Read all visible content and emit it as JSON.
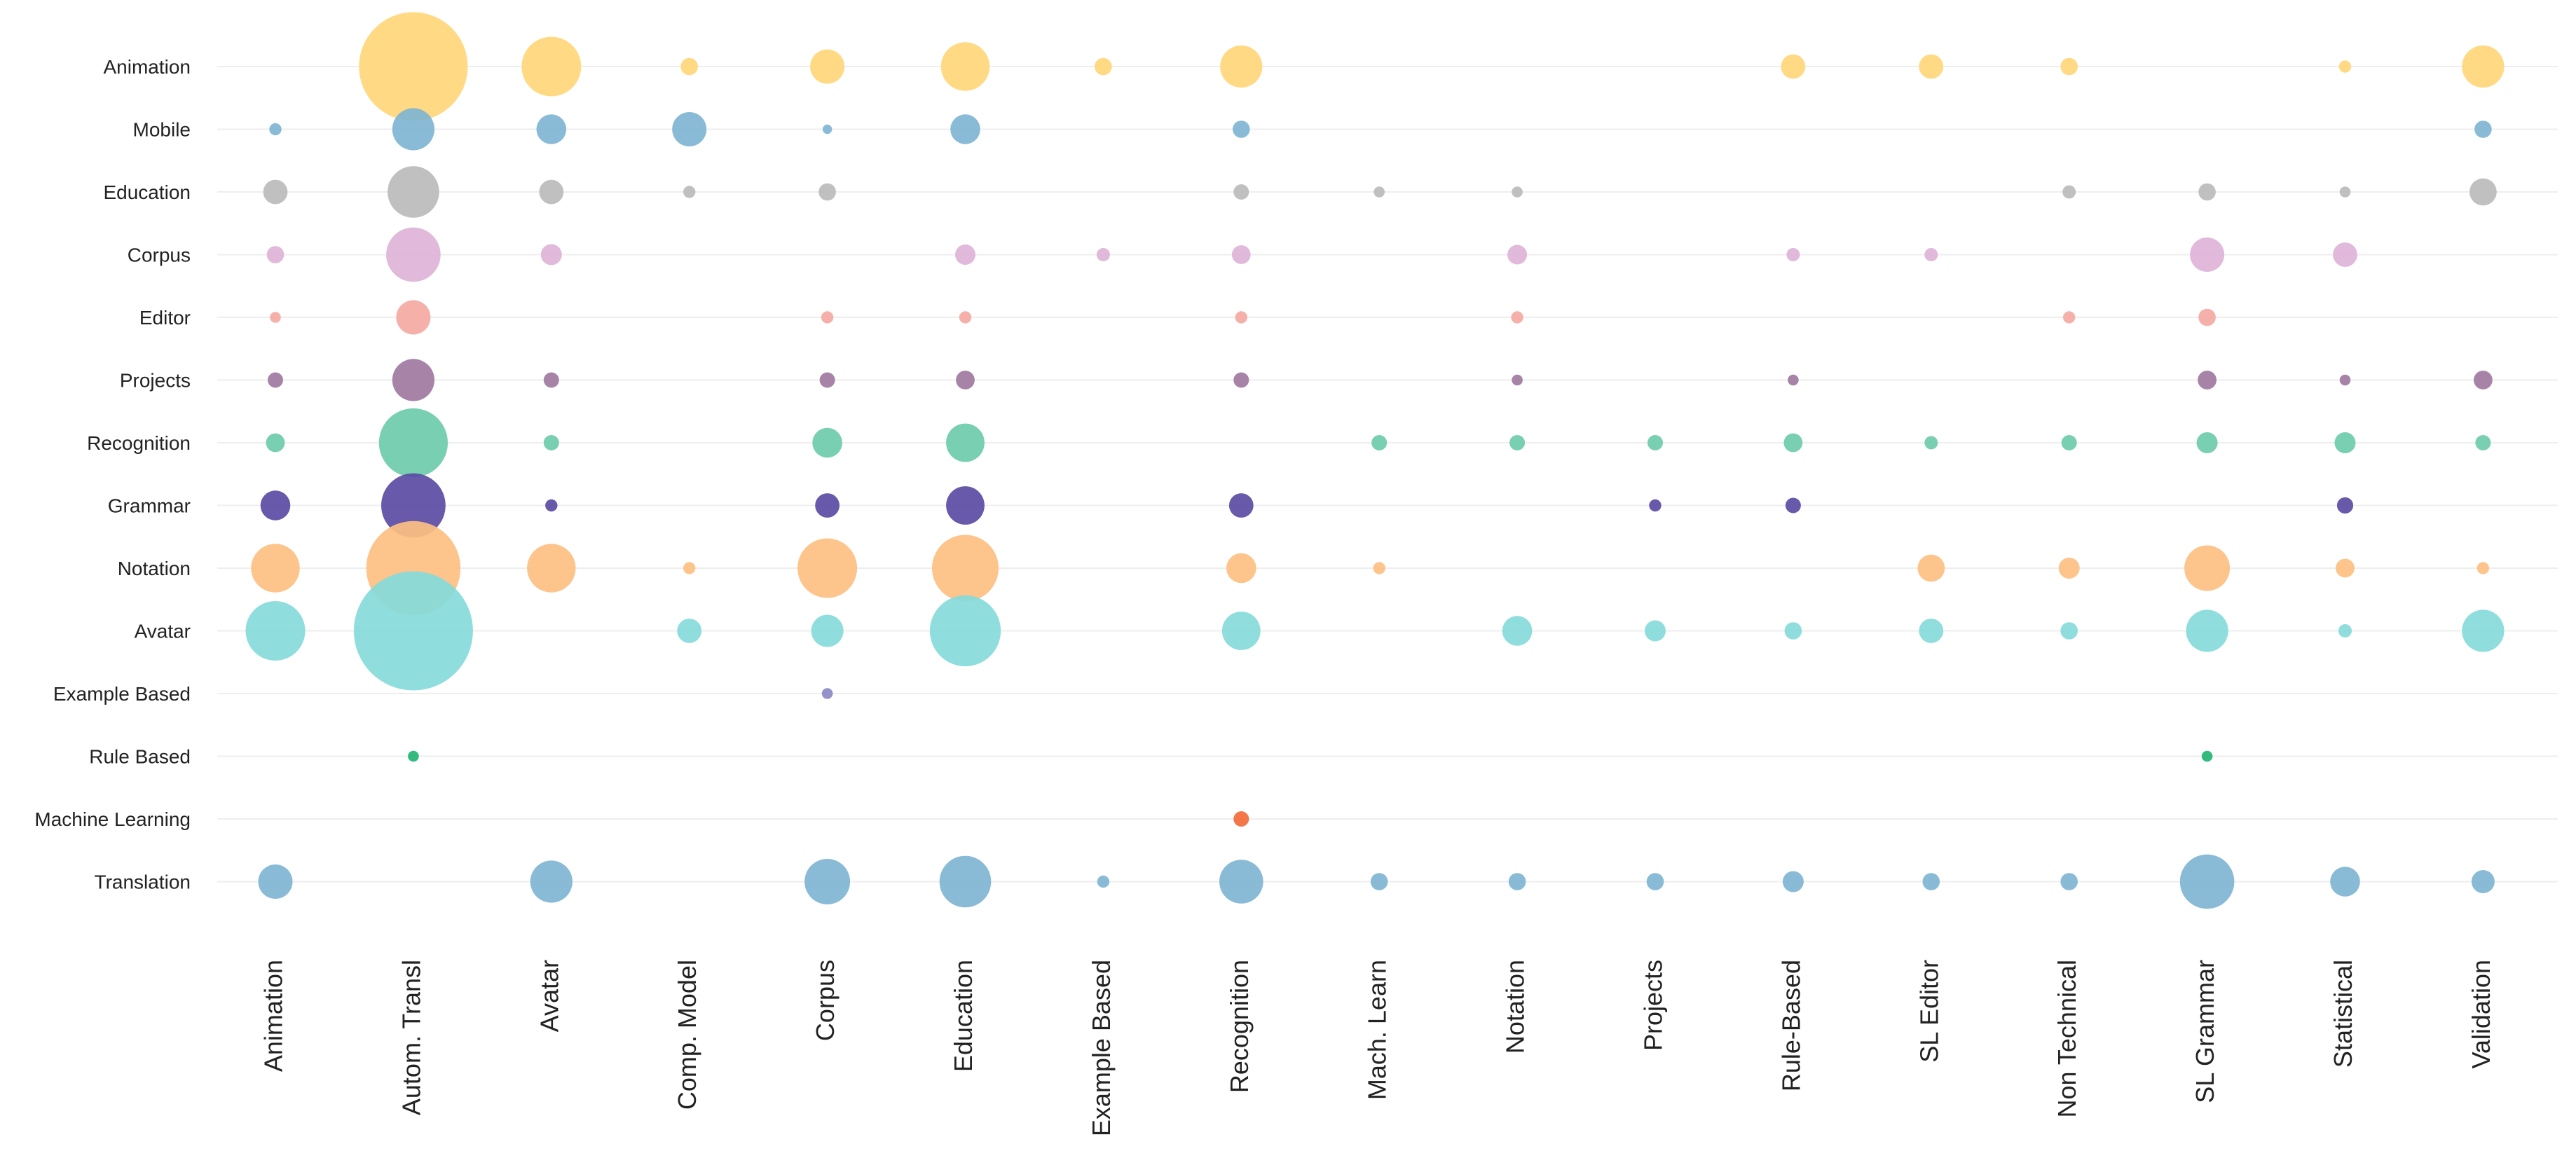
{
  "chart_data": {
    "type": "scatter",
    "subtype": "bubble-matrix",
    "title": "",
    "xlabel": "",
    "ylabel": "",
    "grid": true,
    "rows": [
      {
        "key": "animation",
        "label": "Animation",
        "color": "#FFD67A"
      },
      {
        "key": "mobile",
        "label": "Mobile",
        "color": "#7FB5D2"
      },
      {
        "key": "education",
        "label": "Education",
        "color": "#BBBBBB"
      },
      {
        "key": "corpus",
        "label": "Corpus",
        "color": "#DDB3D8"
      },
      {
        "key": "editor",
        "label": "Editor",
        "color": "#F5A9A3"
      },
      {
        "key": "projects",
        "label": "Projects",
        "color": "#A07AA0"
      },
      {
        "key": "recognition",
        "label": "Recognition",
        "color": "#6CCBAA"
      },
      {
        "key": "grammar",
        "label": "Grammar",
        "color": "#5B4BA3"
      },
      {
        "key": "notation",
        "label": "Notation",
        "color": "#FDBF81"
      },
      {
        "key": "avatar",
        "label": "Avatar",
        "color": "#86DADA"
      },
      {
        "key": "example-based",
        "label": "Example Based",
        "color": "#8C88C6"
      },
      {
        "key": "rule-based",
        "label": "Rule Based",
        "color": "#22B573"
      },
      {
        "key": "machine-learning",
        "label": "Machine Learning",
        "color": "#F26B3A"
      },
      {
        "key": "translation",
        "label": "Translation",
        "color": "#7FB5D2"
      }
    ],
    "columns": [
      {
        "key": "animation",
        "label": "Animation"
      },
      {
        "key": "autom-transl",
        "label": "Autom. Transl"
      },
      {
        "key": "avatar",
        "label": "Avatar"
      },
      {
        "key": "comp-model",
        "label": "Comp. Model"
      },
      {
        "key": "corpus",
        "label": "Corpus"
      },
      {
        "key": "education",
        "label": "Education"
      },
      {
        "key": "example-based",
        "label": "Example Based"
      },
      {
        "key": "recognition",
        "label": "Recognition"
      },
      {
        "key": "mach-learn",
        "label": "Mach. Learn"
      },
      {
        "key": "notation",
        "label": "Notation"
      },
      {
        "key": "projects",
        "label": "Projects"
      },
      {
        "key": "rule-based",
        "label": "Rule-Based"
      },
      {
        "key": "sl-editor",
        "label": "SL Editor"
      },
      {
        "key": "non-technical",
        "label": "Non Technical"
      },
      {
        "key": "sl-grammar",
        "label": "SL Grammar"
      },
      {
        "key": "statistical",
        "label": "Statistical"
      },
      {
        "key": "validation",
        "label": "Validation"
      }
    ],
    "values": [
      [
        0,
        40,
        12,
        1,
        4,
        8,
        1,
        6,
        0,
        0,
        0,
        2,
        2,
        1,
        0,
        0.5,
        6
      ],
      [
        0.5,
        6,
        3,
        4,
        0.3,
        3,
        0,
        1,
        0,
        0,
        0,
        0,
        0,
        0,
        0,
        0,
        1
      ],
      [
        2,
        9,
        2,
        0.5,
        1,
        0,
        0,
        0.8,
        0.4,
        0.4,
        0,
        0,
        0,
        0.6,
        1,
        0.4,
        2.5
      ],
      [
        1,
        10,
        1.5,
        0,
        0,
        1.4,
        0.6,
        1.2,
        0,
        1.3,
        0,
        0.6,
        0.6,
        0,
        4,
        2,
        0
      ],
      [
        0.4,
        4,
        0,
        0,
        0.5,
        0.5,
        0,
        0.5,
        0,
        0.5,
        0,
        0,
        0,
        0.5,
        1,
        0,
        0
      ],
      [
        0.8,
        6,
        0.8,
        0,
        0.8,
        1.2,
        0,
        0.8,
        0,
        0.4,
        0,
        0.4,
        0,
        0,
        1.2,
        0.4,
        1.2
      ],
      [
        1.2,
        16,
        0.8,
        0,
        3,
        5,
        0,
        0,
        0.8,
        0.8,
        0.8,
        1.2,
        0.6,
        0.8,
        1.5,
        1.5,
        0.8
      ],
      [
        3,
        14,
        0.5,
        0,
        2,
        5,
        0,
        2,
        0,
        0,
        0.5,
        0.8,
        0,
        0,
        0,
        0.9,
        0
      ],
      [
        8,
        30,
        8,
        0.5,
        12,
        15,
        0,
        3,
        0.5,
        0,
        0,
        0,
        2.5,
        1.5,
        7,
        1.2,
        0.5
      ],
      [
        12,
        48,
        0,
        2,
        3.5,
        17,
        0,
        5,
        0,
        3,
        1.5,
        1,
        2,
        1,
        6,
        0.6,
        6
      ],
      [
        0,
        0,
        0,
        0,
        0.4,
        0,
        0,
        0,
        0,
        0,
        0,
        0,
        0,
        0,
        0,
        0,
        0
      ],
      [
        0,
        0.4,
        0,
        0,
        0,
        0,
        0,
        0,
        0,
        0,
        0,
        0,
        0,
        0,
        0.4,
        0,
        0
      ],
      [
        0,
        0,
        0,
        0,
        0,
        0,
        0,
        0.8,
        0,
        0,
        0,
        0,
        0,
        0,
        0,
        0,
        0
      ],
      [
        4,
        0,
        6,
        0,
        7,
        9,
        0.5,
        6.5,
        1,
        1,
        1,
        1.5,
        1,
        1,
        10,
        3,
        1.8
      ]
    ]
  }
}
